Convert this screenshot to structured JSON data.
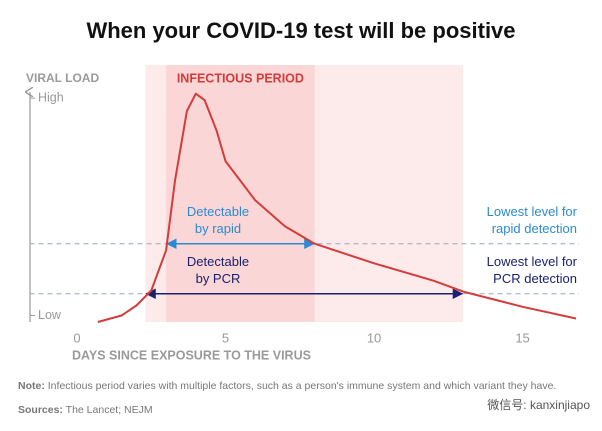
{
  "chart_data": {
    "type": "line",
    "title": "When your COVID-19 test will be positive",
    "y_label": "VIRAL LOAD",
    "x_label": "DAYS SINCE EXPOSURE TO THE VIRUS",
    "x": [
      0.7,
      1.5,
      2,
      2.5,
      3,
      3.3,
      3.7,
      4,
      4.3,
      4.7,
      5,
      6,
      7,
      8,
      10,
      12,
      13,
      15,
      16.8
    ],
    "values": [
      -3,
      0,
      4.6,
      11.5,
      30,
      62,
      94,
      102,
      99,
      85,
      71,
      53,
      41,
      33,
      24,
      16,
      11,
      4,
      -1.4
    ],
    "color": "#d43c3c",
    "xlim": [
      -1.6,
      16.9
    ],
    "xticks": [
      0,
      5,
      10,
      15
    ],
    "ylim": [
      -3,
      105
    ],
    "yticks": [
      {
        "value": 100,
        "label": "High"
      },
      {
        "value": 0,
        "label": "Low"
      }
    ],
    "bands": [
      {
        "range": [
          2.3,
          13
        ],
        "color": "#fdeaea"
      },
      {
        "label": "INFECTIOUS PERIOD",
        "range": [
          3,
          8
        ],
        "color": "#fbd6d6"
      }
    ],
    "thresholds": [
      {
        "value": 33,
        "range": [
          3,
          8
        ],
        "color": "#2b8bd2",
        "arrow_label": [
          "Detectable",
          "by rapid"
        ],
        "label": [
          "Lowest level for",
          "rapid detection"
        ]
      },
      {
        "value": 10,
        "range": [
          2.3,
          13
        ],
        "color": "#1b2170",
        "arrow_label": [
          "Detectable",
          "by PCR"
        ],
        "label": [
          "Lowest level for",
          "PCR detection"
        ]
      }
    ],
    "note_label": "Note:",
    "note": "Infectious period varies with multiple factors, such as a person's immune system and which variant they have.",
    "sources_label": "Sources:",
    "sources": "The Lancet; NEJM",
    "watermark": "微信号: kanxinjiapo"
  }
}
